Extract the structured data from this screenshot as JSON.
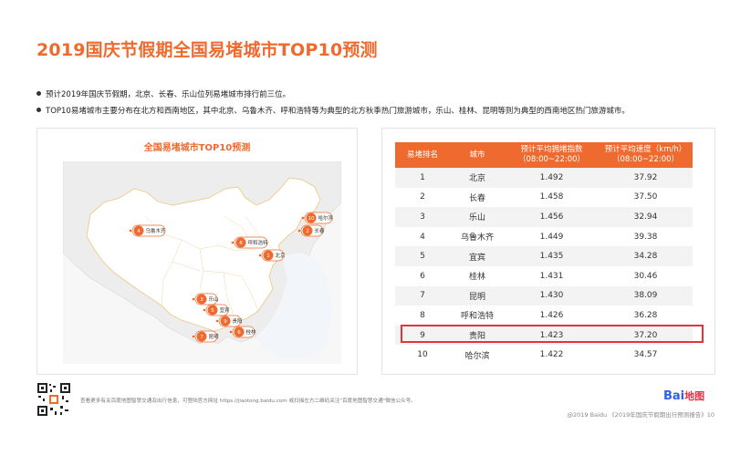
{
  "page_title": "2019国庆节假期全国易堵城市TOP10预测",
  "bullets": [
    "预计2019年国庆节假期，北京、长春、乐山位列易堵城市排行前三位。",
    "TOP10易堵城市主要分布在北方和西南地区，其中北京、乌鲁木齐、呼和浩特等为典型的北方秋季热门旅游城市，乐山、桂林、昆明等则为典型的西南地区热门旅游城市。"
  ],
  "map": {
    "title": "全国易堵城市TOP10预测",
    "pins": [
      {
        "rank": "1",
        "name": "北京"
      },
      {
        "rank": "2",
        "name": "长春"
      },
      {
        "rank": "3",
        "name": "乐山"
      },
      {
        "rank": "4",
        "name": "乌鲁木齐"
      },
      {
        "rank": "5",
        "name": "宜宾"
      },
      {
        "rank": "6",
        "name": "桂林"
      },
      {
        "rank": "7",
        "name": "昆明"
      },
      {
        "rank": "8",
        "name": "呼和浩特"
      },
      {
        "rank": "9",
        "name": "贵阳"
      },
      {
        "rank": "10",
        "name": "哈尔滨"
      }
    ],
    "colors": {
      "pin": "#ef6a2e",
      "land": "#eeeeee",
      "border": "#f0c98a"
    }
  },
  "table": {
    "headers": [
      "易堵排名",
      "城市",
      "预计平均拥堵指数\n（08:00~22:00）",
      "预计平均速度（km/h）\n（08:00~22:00）"
    ],
    "rows": [
      {
        "rank": "1",
        "city": "北京",
        "index": "1.492",
        "speed": "37.92"
      },
      {
        "rank": "2",
        "city": "长春",
        "index": "1.458",
        "speed": "37.50"
      },
      {
        "rank": "3",
        "city": "乐山",
        "index": "1.456",
        "speed": "32.94"
      },
      {
        "rank": "4",
        "city": "乌鲁木齐",
        "index": "1.449",
        "speed": "39.38"
      },
      {
        "rank": "5",
        "city": "宜宾",
        "index": "1.435",
        "speed": "34.28"
      },
      {
        "rank": "6",
        "city": "桂林",
        "index": "1.431",
        "speed": "30.46"
      },
      {
        "rank": "7",
        "city": "昆明",
        "index": "1.430",
        "speed": "38.09"
      },
      {
        "rank": "8",
        "city": "呼和浩特",
        "index": "1.426",
        "speed": "36.28"
      },
      {
        "rank": "9",
        "city": "贵阳",
        "index": "1.423",
        "speed": "37.20"
      },
      {
        "rank": "10",
        "city": "哈尔滨",
        "index": "1.422",
        "speed": "34.57"
      }
    ],
    "header_color": "#ef6a2e",
    "highlight_color": "#e8303f"
  },
  "footer": {
    "note": "查看更多有关百度地图智慧交通及出行信息，可登陆官方网址 https://jiaotong.baidu.com 或扫描左方二维码关注\"百度地图智慧交通\"微信公众号。",
    "logo_text": "Bai",
    "logo_suffix": "地图",
    "page_ref": "@2019 Baidu 《2019年国庆节假期出行预测报告》10"
  }
}
